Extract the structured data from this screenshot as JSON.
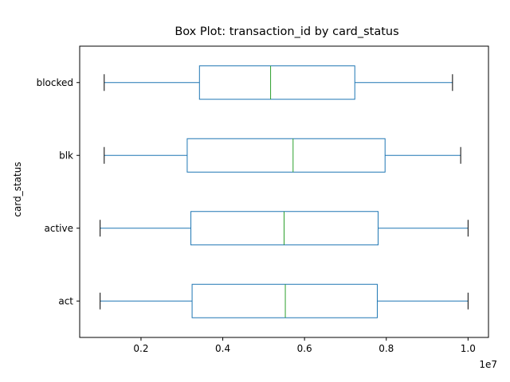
{
  "chart_data": {
    "type": "box",
    "orientation": "horizontal",
    "title": "Box Plot: transaction_id by card_status",
    "ylabel": "card_status",
    "xlabel": "",
    "x_scale_label": "1e7",
    "x_tick_labels": [
      "0.2",
      "0.4",
      "0.6",
      "0.8",
      "1.0"
    ],
    "x_ticks": [
      0.2,
      0.4,
      0.6,
      0.8,
      1.0
    ],
    "xlim": [
      0.05,
      1.05
    ],
    "categories": [
      "act",
      "active",
      "blk",
      "blocked"
    ],
    "boxes": [
      {
        "category": "act",
        "whisker_low": 0.1,
        "q1": 0.325,
        "median": 0.553,
        "q3": 0.778,
        "whisker_high": 1.0
      },
      {
        "category": "active",
        "whisker_low": 0.1,
        "q1": 0.322,
        "median": 0.55,
        "q3": 0.78,
        "whisker_high": 1.0
      },
      {
        "category": "blk",
        "whisker_low": 0.11,
        "q1": 0.313,
        "median": 0.572,
        "q3": 0.797,
        "whisker_high": 0.982
      },
      {
        "category": "blocked",
        "whisker_low": 0.11,
        "q1": 0.343,
        "median": 0.517,
        "q3": 0.723,
        "whisker_high": 0.962
      }
    ],
    "grid": false,
    "colors": {
      "box": "#1f77b4",
      "median": "#2ca02c",
      "cap": "#000000"
    }
  }
}
